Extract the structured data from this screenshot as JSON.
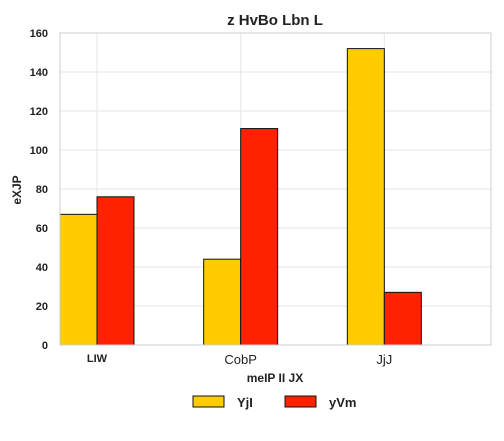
{
  "chart_data": {
    "type": "bar",
    "title": "z  HvBo  Lbn L",
    "xlabel": "meIP II JX",
    "ylabel": "eXJP",
    "categories": [
      "LIW",
      "CobP",
      "JjJ"
    ],
    "category_bold": [
      true,
      false,
      false
    ],
    "series": [
      {
        "name": "YjI",
        "values": [
          67,
          44,
          152
        ],
        "color": "#ffcc00"
      },
      {
        "name": "yVm",
        "values": [
          76,
          111,
          27
        ],
        "color": "#ff2200"
      }
    ],
    "ylim": [
      0,
      160
    ],
    "yticks": [
      0,
      20,
      40,
      60,
      80,
      100,
      120,
      140,
      160
    ],
    "grid": true,
    "legend_position": "bottom"
  }
}
